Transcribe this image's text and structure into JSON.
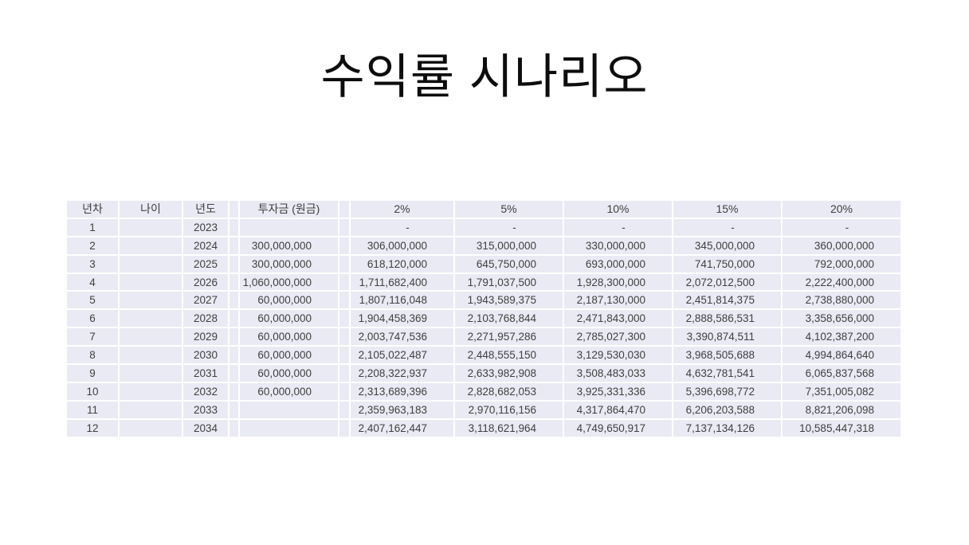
{
  "title": "수익률 시나리오",
  "table": {
    "headers": [
      "년차",
      "나이",
      "년도",
      "투자금 (원금)",
      "2%",
      "5%",
      "10%",
      "15%",
      "20%"
    ],
    "rows": [
      [
        "1",
        "",
        "2023",
        "",
        "-",
        "-",
        "-",
        "-",
        "-"
      ],
      [
        "2",
        "",
        "2024",
        "300,000,000",
        "306,000,000",
        "315,000,000",
        "330,000,000",
        "345,000,000",
        "360,000,000"
      ],
      [
        "3",
        "",
        "2025",
        "300,000,000",
        "618,120,000",
        "645,750,000",
        "693,000,000",
        "741,750,000",
        "792,000,000"
      ],
      [
        "4",
        "",
        "2026",
        "1,060,000,000",
        "1,711,682,400",
        "1,791,037,500",
        "1,928,300,000",
        "2,072,012,500",
        "2,222,400,000"
      ],
      [
        "5",
        "",
        "2027",
        "60,000,000",
        "1,807,116,048",
        "1,943,589,375",
        "2,187,130,000",
        "2,451,814,375",
        "2,738,880,000"
      ],
      [
        "6",
        "",
        "2028",
        "60,000,000",
        "1,904,458,369",
        "2,103,768,844",
        "2,471,843,000",
        "2,888,586,531",
        "3,358,656,000"
      ],
      [
        "7",
        "",
        "2029",
        "60,000,000",
        "2,003,747,536",
        "2,271,957,286",
        "2,785,027,300",
        "3,390,874,511",
        "4,102,387,200"
      ],
      [
        "8",
        "",
        "2030",
        "60,000,000",
        "2,105,022,487",
        "2,448,555,150",
        "3,129,530,030",
        "3,968,505,688",
        "4,994,864,640"
      ],
      [
        "9",
        "",
        "2031",
        "60,000,000",
        "2,208,322,937",
        "2,633,982,908",
        "3,508,483,033",
        "4,632,781,541",
        "6,065,837,568"
      ],
      [
        "10",
        "",
        "2032",
        "60,000,000",
        "2,313,689,396",
        "2,828,682,053",
        "3,925,331,336",
        "5,396,698,772",
        "7,351,005,082"
      ],
      [
        "11",
        "",
        "2033",
        "",
        "2,359,963,183",
        "2,970,116,156",
        "4,317,864,470",
        "6,206,203,588",
        "8,821,206,098"
      ],
      [
        "12",
        "",
        "2034",
        "",
        "2,407,162,447",
        "3,118,621,964",
        "4,749,650,917",
        "7,137,134,126",
        "10,585,447,318"
      ]
    ],
    "colors": {
      "cell_fill": "#e9eaf3",
      "gridline": "#ffffff",
      "text": "#404040",
      "title_text": "#0d0d0d"
    }
  }
}
